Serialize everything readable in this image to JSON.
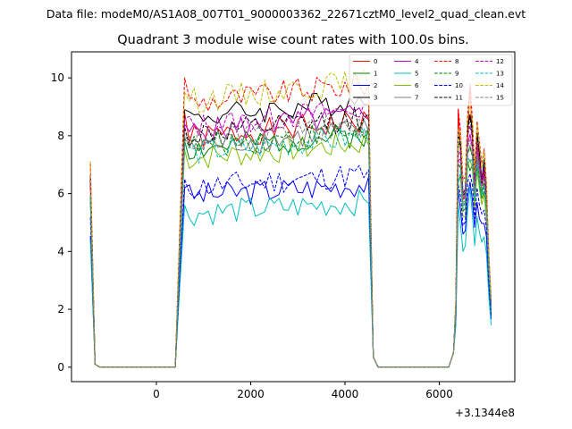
{
  "chart_data": {
    "type": "line",
    "suptitle": "Data file: modeM0/AS1A08_007T01_9000003362_22671cztM0_level2_quad_clean.evt",
    "title": "Quadrant 3 module wise count rates with 100.0s bins.",
    "xlabel": "",
    "ylabel": "",
    "x_offset_label": "+3.1344e8",
    "xlim": [
      -1800,
      7600
    ],
    "ylim": [
      -0.5,
      10.9
    ],
    "xticks": [
      "0",
      "2000",
      "4000",
      "6000"
    ],
    "yticks": [
      "0",
      "2",
      "4",
      "6",
      "8",
      "10"
    ],
    "legend_position": "top-right",
    "series": [
      {
        "name": "0",
        "color": "#ff0000",
        "dash": "solid",
        "high": 7.9,
        "tail": 7.4,
        "tail_low": 5.8,
        "spike": 10.0
      },
      {
        "name": "1",
        "color": "#008000",
        "dash": "solid",
        "high": 7.5,
        "tail": 6.6,
        "tail_low": 5.4,
        "spike": 7.0
      },
      {
        "name": "2",
        "color": "#0000ff",
        "dash": "solid",
        "high": 5.9,
        "tail": 5.4,
        "tail_low": 4.6,
        "spike": 6.6
      },
      {
        "name": "3",
        "color": "#000000",
        "dash": "solid",
        "high": 8.6,
        "tail": 7.8,
        "tail_low": 6.0,
        "spike": 9.0
      },
      {
        "name": "4",
        "color": "#bf00bf",
        "dash": "solid",
        "high": 8.1,
        "tail": 7.2,
        "tail_low": 5.8,
        "spike": 8.3
      },
      {
        "name": "5",
        "color": "#00bfbf",
        "dash": "solid",
        "high": 5.3,
        "tail": 4.9,
        "tail_low": 4.0,
        "spike": 6.4
      },
      {
        "name": "6",
        "color": "#7fbf00",
        "dash": "solid",
        "high": 7.2,
        "tail": 6.5,
        "tail_low": 5.2,
        "spike": 7.4
      },
      {
        "name": "7",
        "color": "#7f7f7f",
        "dash": "solid",
        "high": 7.6,
        "tail": 6.9,
        "tail_low": 5.6,
        "spike": 7.9
      },
      {
        "name": "8",
        "color": "#ff0000",
        "dash": "dashed",
        "high": 9.1,
        "tail": 8.2,
        "tail_low": 6.5,
        "spike": 10.1
      },
      {
        "name": "9",
        "color": "#008000",
        "dash": "dashed",
        "high": 7.6,
        "tail": 6.9,
        "tail_low": 5.6,
        "spike": 7.8
      },
      {
        "name": "10",
        "color": "#0000ff",
        "dash": "dashed",
        "high": 6.2,
        "tail": 5.9,
        "tail_low": 4.9,
        "spike": 6.9
      },
      {
        "name": "11",
        "color": "#000000",
        "dash": "dashed",
        "high": 8.0,
        "tail": 7.6,
        "tail_low": 5.9,
        "spike": 8.9
      },
      {
        "name": "12",
        "color": "#bf00bf",
        "dash": "dashed",
        "high": 8.3,
        "tail": 7.5,
        "tail_low": 6.0,
        "spike": 8.6
      },
      {
        "name": "13",
        "color": "#00bfbf",
        "dash": "dashed",
        "high": 7.4,
        "tail": 6.8,
        "tail_low": 5.5,
        "spike": 7.3
      },
      {
        "name": "14",
        "color": "#bfbf00",
        "dash": "dashed",
        "high": 9.2,
        "tail": 8.1,
        "tail_low": 6.4,
        "spike": 9.5
      },
      {
        "name": "15",
        "color": "#7f7f7f",
        "dash": "dashed",
        "high": 7.8,
        "tail": 7.1,
        "tail_low": 5.7,
        "spike": 8.1
      }
    ]
  }
}
